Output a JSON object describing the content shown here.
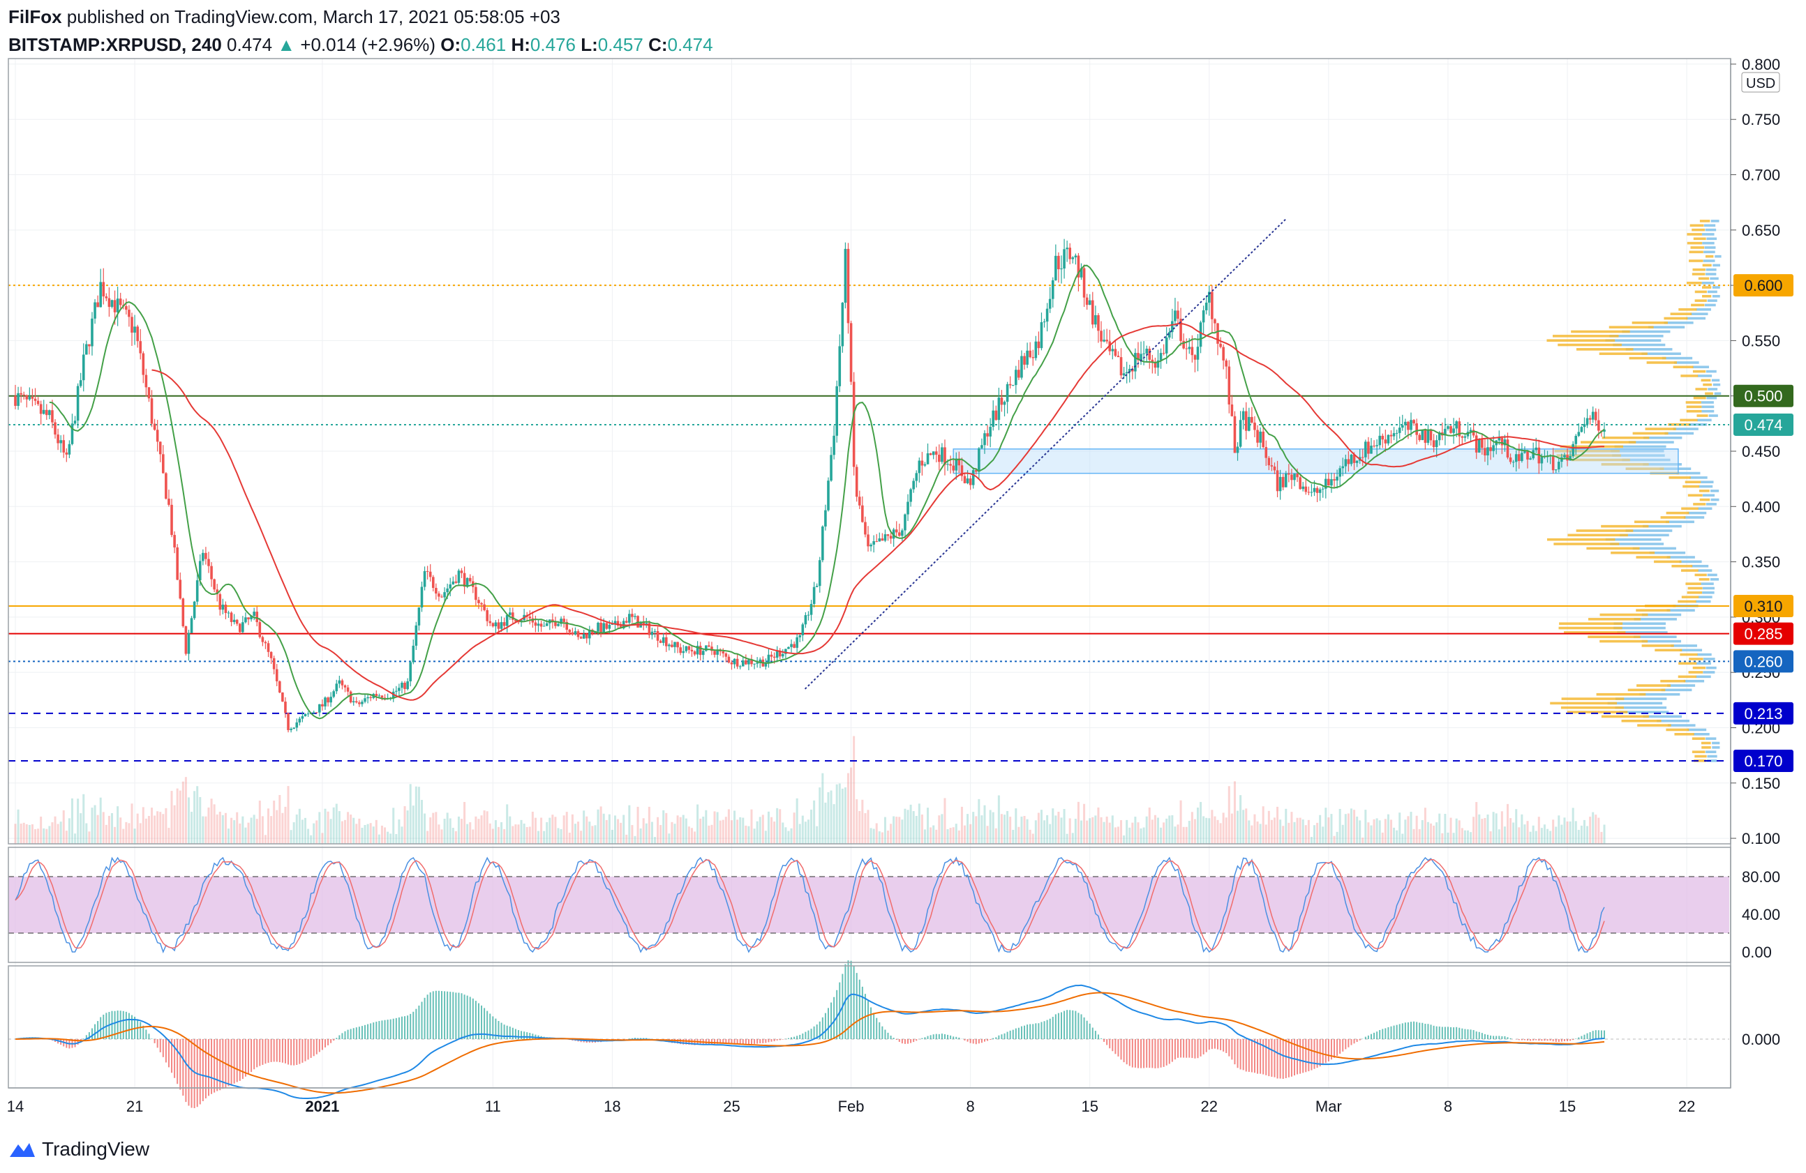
{
  "header": {
    "author": "FilFox",
    "published_text": "published on TradingView.com, March 17, 2021 05:58:05 +03",
    "symbol": "BITSTAMP:XRPUSD, 240",
    "last": "0.474",
    "change_arrow": "▲",
    "change": "+0.014 (+2.96%)",
    "o_label": "O:",
    "o_value": "0.461",
    "h_label": "H:",
    "h_value": "0.476",
    "l_label": "L:",
    "l_value": "0.457",
    "c_label": "C:",
    "c_value": "0.474"
  },
  "footer": {
    "brand": "TradingView",
    "icon": "tradingview-logo-icon"
  },
  "colors": {
    "up": "#26a69a",
    "down": "#ef5350",
    "ma_fast": "#43a047",
    "ma_slow": "#e53935",
    "stoch_k": "#4a90e2",
    "stoch_d": "#f06c6c",
    "macd": "#1e88e5",
    "signal": "#ef6c00",
    "level_orange": "#f7a600",
    "level_green": "#33691e",
    "level_red": "#e50000",
    "level_blue": "#1565c0",
    "level_navy": "#0000cc"
  },
  "chart_data": {
    "type": "candlestick",
    "currency_label": "USD",
    "price_axis": {
      "ylim": [
        0.095,
        0.805
      ],
      "ticks": [
        "0.100",
        "0.150",
        "0.200",
        "0.250",
        "0.300",
        "0.350",
        "0.400",
        "0.450",
        "0.500",
        "0.550",
        "0.600",
        "0.650",
        "0.700",
        "0.750",
        "0.800"
      ]
    },
    "x_axis": {
      "ticks": [
        {
          "label": "14",
          "day": 0
        },
        {
          "label": "21",
          "day": 7
        },
        {
          "label": "2021",
          "day": 18,
          "bold": true
        },
        {
          "label": "11",
          "day": 28
        },
        {
          "label": "18",
          "day": 35
        },
        {
          "label": "25",
          "day": 42
        },
        {
          "label": "Feb",
          "day": 49
        },
        {
          "label": "8",
          "day": 56
        },
        {
          "label": "15",
          "day": 63
        },
        {
          "label": "22",
          "day": 70
        },
        {
          "label": "Mar",
          "day": 77
        },
        {
          "label": "8",
          "day": 84
        },
        {
          "label": "15",
          "day": 91
        },
        {
          "label": "22",
          "day": 98
        }
      ],
      "last_day": 93.2
    },
    "price_keypoints": [
      [
        0,
        0.5
      ],
      [
        2,
        0.48
      ],
      [
        3,
        0.44
      ],
      [
        4,
        0.53
      ],
      [
        5,
        0.6
      ],
      [
        6,
        0.58
      ],
      [
        7,
        0.56
      ],
      [
        8,
        0.48
      ],
      [
        9,
        0.4
      ],
      [
        10,
        0.27
      ],
      [
        11,
        0.36
      ],
      [
        12,
        0.31
      ],
      [
        13,
        0.29
      ],
      [
        14,
        0.3
      ],
      [
        15,
        0.26
      ],
      [
        16,
        0.2
      ],
      [
        17,
        0.21
      ],
      [
        18,
        0.22
      ],
      [
        19,
        0.24
      ],
      [
        20,
        0.22
      ],
      [
        21,
        0.23
      ],
      [
        22,
        0.23
      ],
      [
        23,
        0.24
      ],
      [
        24,
        0.34
      ],
      [
        25,
        0.32
      ],
      [
        26,
        0.34
      ],
      [
        27,
        0.32
      ],
      [
        28,
        0.29
      ],
      [
        29,
        0.3
      ],
      [
        30,
        0.3
      ],
      [
        31,
        0.29
      ],
      [
        32,
        0.3
      ],
      [
        33,
        0.28
      ],
      [
        34,
        0.29
      ],
      [
        35,
        0.29
      ],
      [
        36,
        0.3
      ],
      [
        37,
        0.29
      ],
      [
        38,
        0.28
      ],
      [
        39,
        0.27
      ],
      [
        40,
        0.27
      ],
      [
        41,
        0.27
      ],
      [
        42,
        0.26
      ],
      [
        43,
        0.26
      ],
      [
        44,
        0.26
      ],
      [
        45,
        0.27
      ],
      [
        46,
        0.28
      ],
      [
        47,
        0.33
      ],
      [
        48,
        0.47
      ],
      [
        48.7,
        0.63
      ],
      [
        49.2,
        0.42
      ],
      [
        50,
        0.36
      ],
      [
        51,
        0.37
      ],
      [
        52,
        0.38
      ],
      [
        53,
        0.44
      ],
      [
        54,
        0.45
      ],
      [
        55,
        0.44
      ],
      [
        56,
        0.42
      ],
      [
        57,
        0.47
      ],
      [
        58,
        0.5
      ],
      [
        59,
        0.53
      ],
      [
        60,
        0.55
      ],
      [
        61,
        0.62
      ],
      [
        62,
        0.63
      ],
      [
        63,
        0.58
      ],
      [
        64,
        0.54
      ],
      [
        65,
        0.52
      ],
      [
        66,
        0.54
      ],
      [
        67,
        0.53
      ],
      [
        68,
        0.57
      ],
      [
        69,
        0.53
      ],
      [
        70,
        0.59
      ],
      [
        71,
        0.52
      ],
      [
        71.5,
        0.45
      ],
      [
        72,
        0.48
      ],
      [
        73,
        0.46
      ],
      [
        74,
        0.42
      ],
      [
        75,
        0.43
      ],
      [
        76,
        0.41
      ],
      [
        77,
        0.42
      ],
      [
        78,
        0.44
      ],
      [
        79,
        0.45
      ],
      [
        80,
        0.46
      ],
      [
        81,
        0.47
      ],
      [
        82,
        0.47
      ],
      [
        83,
        0.46
      ],
      [
        84,
        0.47
      ],
      [
        85,
        0.47
      ],
      [
        86,
        0.45
      ],
      [
        87,
        0.46
      ],
      [
        88,
        0.44
      ],
      [
        89,
        0.45
      ],
      [
        90,
        0.44
      ],
      [
        91,
        0.44
      ],
      [
        92,
        0.48
      ],
      [
        93.2,
        0.474
      ]
    ],
    "moving_averages": [
      {
        "color_key": "ma_fast",
        "period": 12
      },
      {
        "color_key": "ma_slow",
        "period": 48
      }
    ],
    "levels": [
      {
        "price": 0.6,
        "label": "0.600",
        "color_key": "level_orange",
        "style": "dotted"
      },
      {
        "price": 0.5,
        "label": "0.500",
        "color_key": "level_green",
        "style": "solid"
      },
      {
        "price": 0.474,
        "label": "0.474",
        "color_key": "up",
        "style": "dotted"
      },
      {
        "price": 0.31,
        "label": "0.310",
        "color_key": "level_orange",
        "style": "solid"
      },
      {
        "price": 0.285,
        "label": "0.285",
        "color_key": "level_red",
        "style": "solid"
      },
      {
        "price": 0.26,
        "label": "0.260",
        "color_key": "level_blue",
        "style": "dotted"
      },
      {
        "price": 0.213,
        "label": "0.213",
        "color_key": "level_navy",
        "style": "dashed"
      },
      {
        "price": 0.17,
        "label": "0.170",
        "color_key": "level_navy",
        "style": "dashed"
      }
    ],
    "zone": {
      "from_day": 55,
      "to_day": 97.5,
      "low": 0.43,
      "high": 0.452
    },
    "trendline": {
      "from": [
        46.3,
        0.235
      ],
      "to": [
        74.5,
        0.66
      ]
    },
    "volume_profile_peaks": [
      0.45,
      0.37,
      0.29,
      0.22,
      0.55
    ],
    "stoch_rsi": {
      "ticks": [
        "0.00",
        "40.00",
        "80.00"
      ],
      "bands": [
        20,
        80
      ]
    },
    "macd": {
      "ticks": [
        "0.000"
      ]
    }
  }
}
